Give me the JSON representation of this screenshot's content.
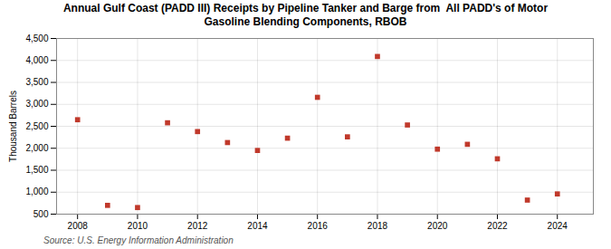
{
  "chart_data": {
    "type": "scatter",
    "title": "Annual Gulf Coast (PADD III) Receipts by Pipeline Tanker and Barge from  All PADD's of Motor\nGasoline Blending Components, RBOB",
    "ylabel": "Thousand Barrels",
    "annotations": [
      "Source: U.S. Energy Information Administration"
    ],
    "x": [
      2008,
      2009,
      2010,
      2011,
      2012,
      2013,
      2014,
      2015,
      2016,
      2017,
      2018,
      2019,
      2020,
      2021,
      2022,
      2023,
      2024
    ],
    "values": [
      2650,
      700,
      650,
      2580,
      2380,
      2130,
      1950,
      2230,
      3160,
      2260,
      4090,
      2530,
      1980,
      2090,
      1760,
      820,
      960
    ],
    "color": "#c0392b",
    "marker": "square",
    "xlim": [
      2007.3,
      2025.2
    ],
    "xticks": [
      2008,
      2010,
      2012,
      2014,
      2016,
      2018,
      2020,
      2022,
      2024
    ],
    "ylim": [
      500,
      4500
    ],
    "yticks": [
      500,
      {
        "value": 1000,
        "label": "1,000"
      },
      {
        "value": 1500,
        "label": "1,500"
      },
      {
        "value": 2000,
        "label": "2,000"
      },
      {
        "value": 2500,
        "label": "2,500"
      },
      {
        "value": 3000,
        "label": "3,000"
      },
      {
        "value": 3500,
        "label": "3,500"
      },
      {
        "value": 4000,
        "label": "4,000"
      },
      {
        "value": 4500,
        "label": "4,500"
      }
    ],
    "grid": true
  }
}
